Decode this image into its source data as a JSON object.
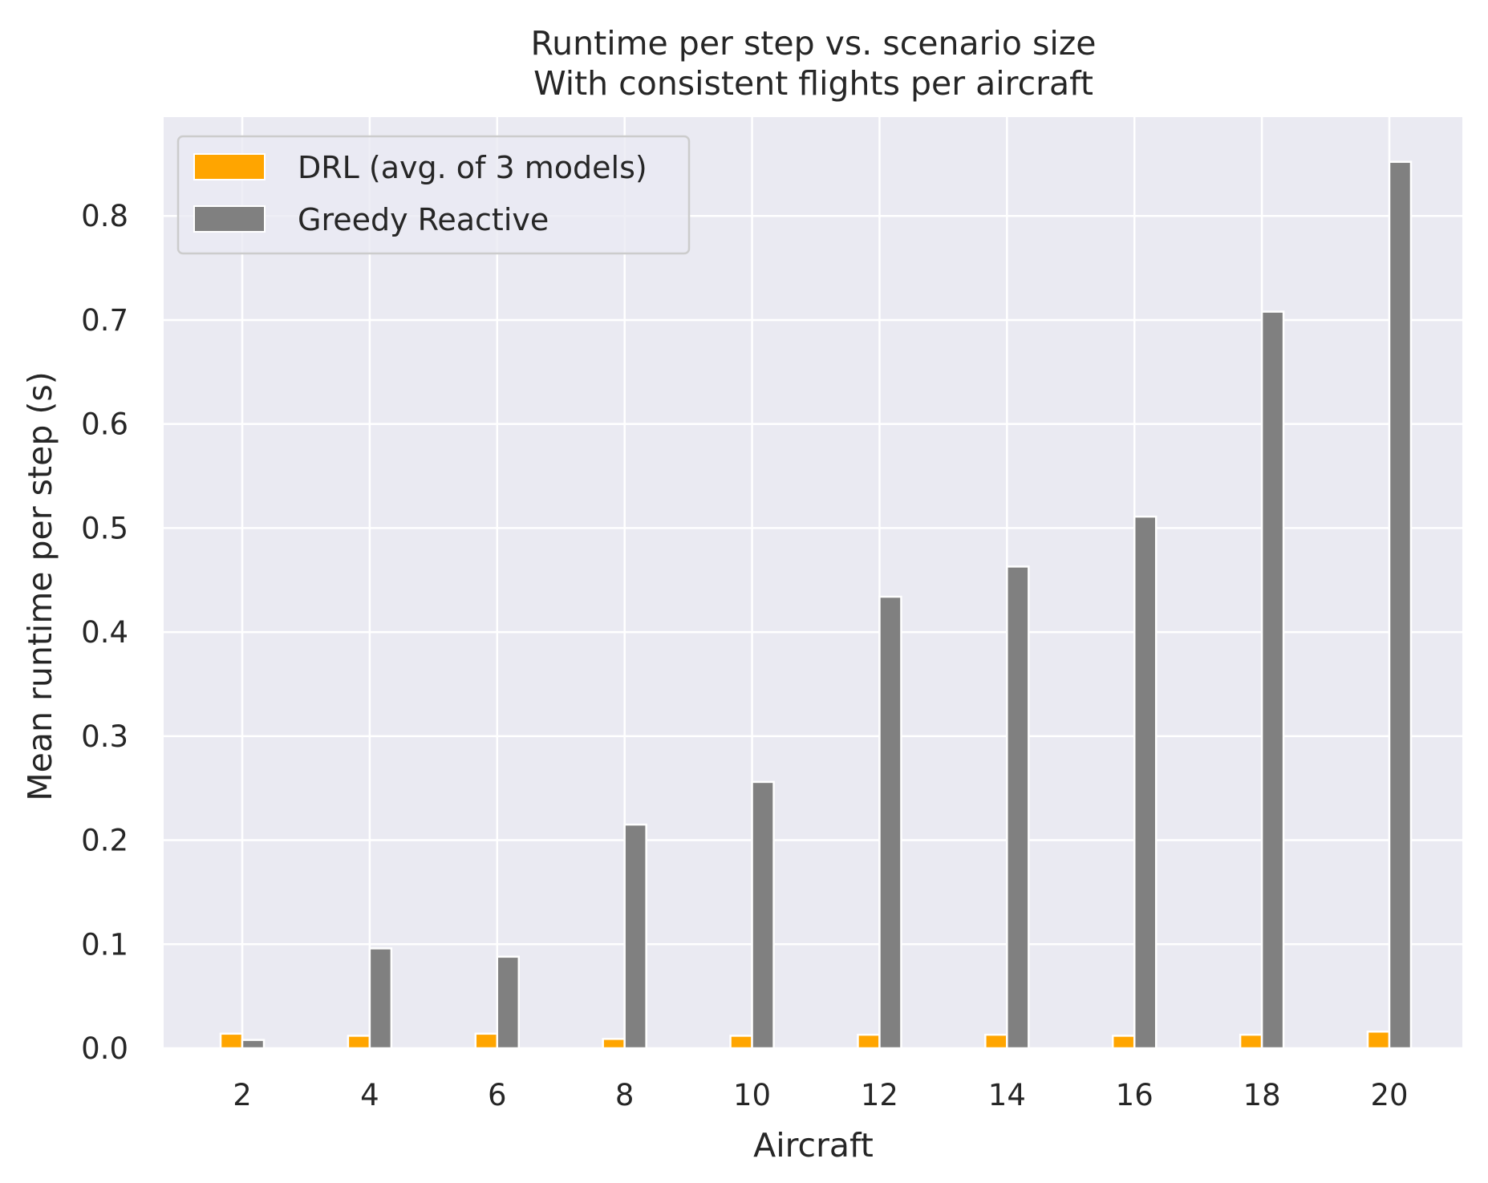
{
  "chart_data": {
    "type": "bar",
    "title": "Runtime per step vs. scenario size",
    "subtitle": "With consistent flights per aircraft",
    "xlabel": "Aircraft",
    "ylabel": "Mean runtime per step (s)",
    "categories": [
      "2",
      "4",
      "6",
      "8",
      "10",
      "12",
      "14",
      "16",
      "18",
      "20"
    ],
    "y_ticks": [
      "0.0",
      "0.1",
      "0.2",
      "0.3",
      "0.4",
      "0.5",
      "0.6",
      "0.7",
      "0.8"
    ],
    "ylim": [
      0,
      0.895
    ],
    "grid": true,
    "legend_position": "upper-left",
    "series": [
      {
        "name": "DRL (avg. of 3 models)",
        "color": "#ffa500",
        "values": [
          0.014,
          0.012,
          0.014,
          0.009,
          0.012,
          0.013,
          0.013,
          0.012,
          0.013,
          0.016
        ]
      },
      {
        "name": "Greedy Reactive",
        "color": "#808080",
        "values": [
          0.008,
          0.096,
          0.088,
          0.215,
          0.256,
          0.434,
          0.463,
          0.511,
          0.708,
          0.852
        ]
      }
    ],
    "colors": {
      "background": "#eaeaf2",
      "grid": "#ffffff",
      "text": "#262626"
    }
  }
}
